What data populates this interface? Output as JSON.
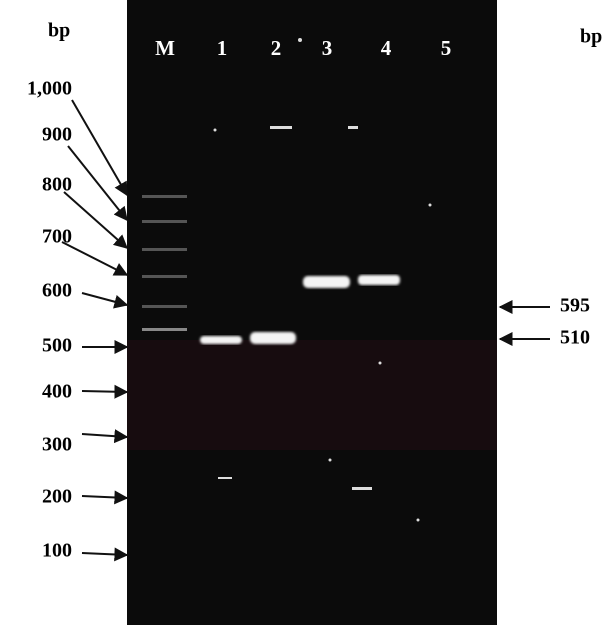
{
  "left_scale": {
    "title": "bp",
    "markers": [
      "1,000",
      "900",
      "800",
      "700",
      "600",
      "500",
      "400",
      "300",
      "200",
      "100"
    ]
  },
  "lanes": [
    "M",
    "1",
    "2",
    "3",
    "4",
    "5"
  ],
  "right_scale": {
    "title": "bp",
    "markers": [
      "595",
      "510"
    ]
  }
}
